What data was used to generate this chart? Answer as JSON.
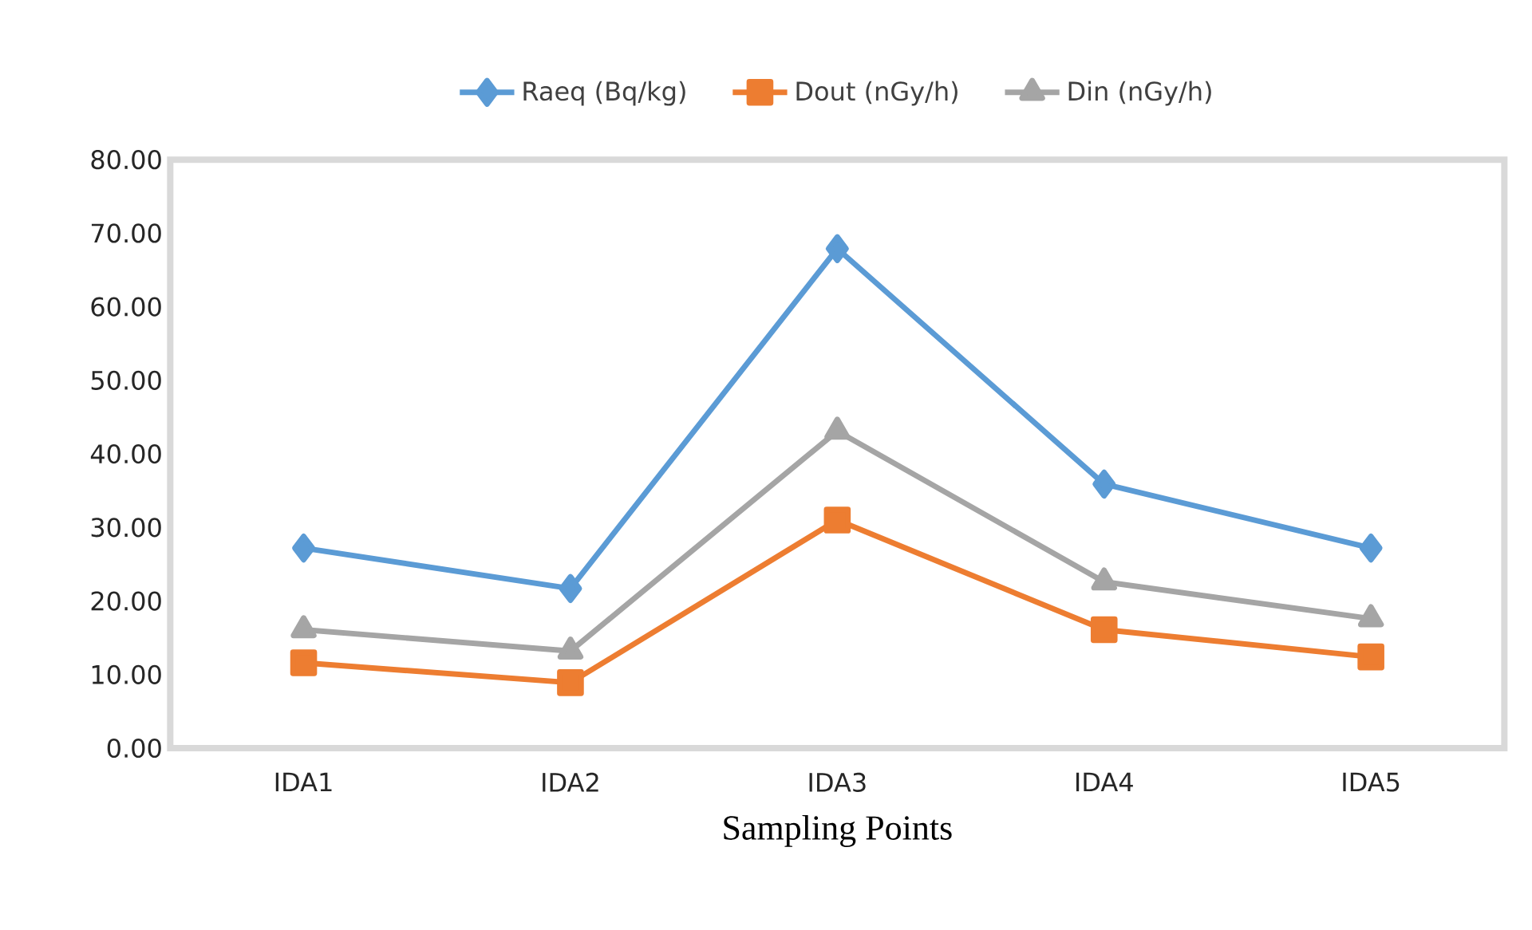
{
  "chart_data": {
    "type": "line",
    "xlabel": "Sampling   Points",
    "categories": [
      "IDA1",
      "IDA2",
      "IDA3",
      "IDA4",
      "IDA5"
    ],
    "series": [
      {
        "name": "Raeq (Bq/kg)",
        "color": "#5b9bd5",
        "marker": "diamond",
        "values": [
          27.2,
          21.7,
          67.9,
          35.9,
          27.2
        ]
      },
      {
        "name": "Dout (nGy/h)",
        "color": "#ed7d31",
        "marker": "square",
        "values": [
          11.6,
          8.9,
          31.0,
          16.1,
          12.4
        ]
      },
      {
        "name": "Din (nGy/h)",
        "color": "#a5a5a5",
        "marker": "triangle",
        "values": [
          16.1,
          13.2,
          43.1,
          22.6,
          17.6
        ]
      }
    ],
    "ylim": [
      0,
      80
    ],
    "yticks": [
      {
        "value": 0,
        "label": "0.00"
      },
      {
        "value": 10,
        "label": "10.00"
      },
      {
        "value": 20,
        "label": "20.00"
      },
      {
        "value": 30,
        "label": "30.00"
      },
      {
        "value": 40,
        "label": "40.00"
      },
      {
        "value": 50,
        "label": "50.00"
      },
      {
        "value": 60,
        "label": "60.00"
      },
      {
        "value": 70,
        "label": "70.00"
      },
      {
        "value": 80,
        "label": "80.00"
      }
    ],
    "legend": "top",
    "grid": false,
    "line_style": "solid"
  }
}
